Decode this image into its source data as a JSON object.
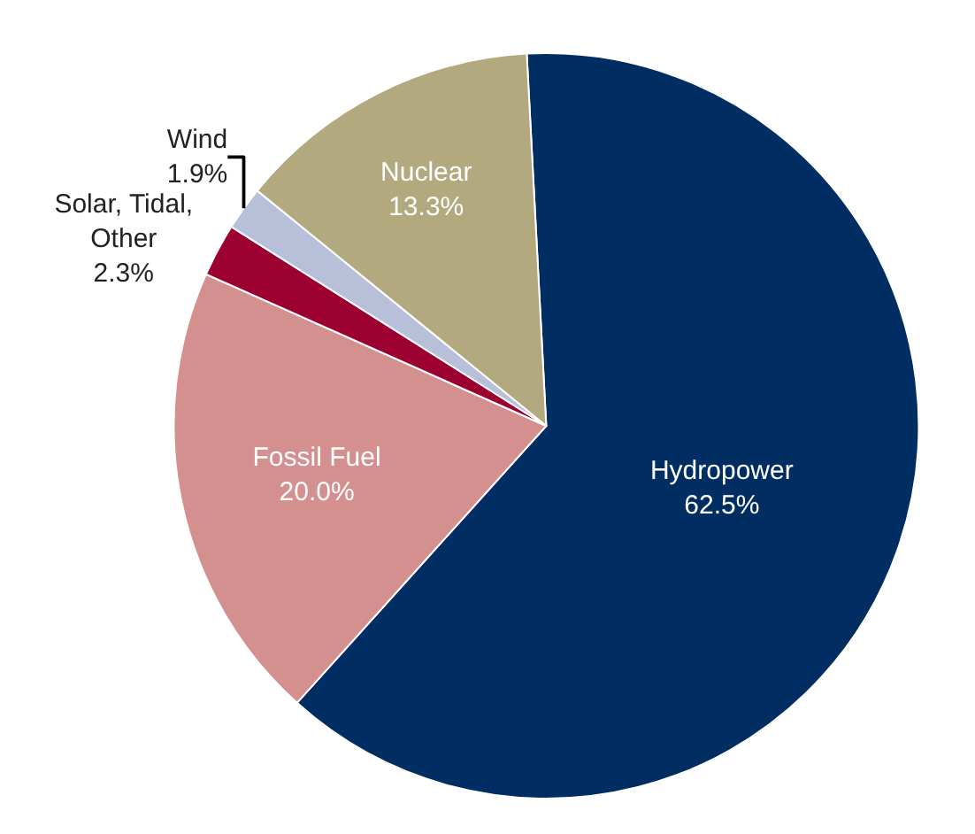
{
  "chart_data": {
    "type": "pie",
    "categories": [
      "Hydropower",
      "Fossil Fuel",
      "Solar, Tidal, Other",
      "Wind",
      "Nuclear"
    ],
    "values": [
      62.5,
      20.0,
      2.3,
      1.9,
      13.3
    ],
    "value_labels": [
      "62.5%",
      "20.0%",
      "2.3%",
      "1.9%",
      "13.3%"
    ],
    "colors": [
      "#002d62",
      "#d4908e",
      "#9b0030",
      "#b8bfd8",
      "#b2a97e"
    ],
    "legend": false
  }
}
